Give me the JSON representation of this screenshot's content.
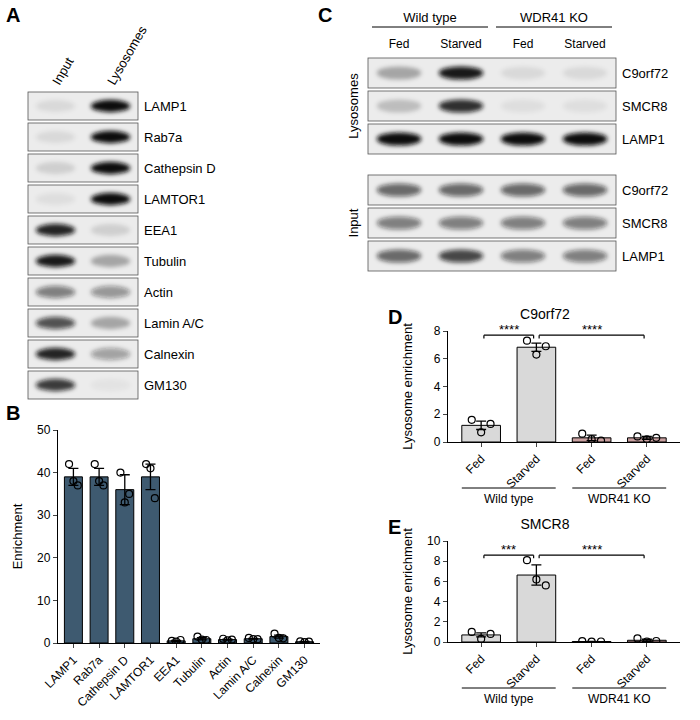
{
  "chart_data": [
    {
      "panel": "B",
      "type": "bar",
      "categories": [
        "LAMP1",
        "Rab7a",
        "Cathepsin D",
        "LAMTOR1",
        "EEA1",
        "Tubulin",
        "Actin",
        "Lamin A/C",
        "Calnexin",
        "GM130"
      ],
      "values": [
        39,
        39,
        36,
        39,
        0.5,
        1,
        0.8,
        1,
        1.5,
        0.3
      ],
      "errors": [
        2,
        2,
        3.5,
        3,
        0.1,
        0.25,
        0.1,
        0.1,
        0.35,
        0.06
      ],
      "points": [
        [
          42,
          38,
          37
        ],
        [
          42,
          38,
          37
        ],
        [
          40,
          33,
          35
        ],
        [
          42,
          41,
          34
        ],
        [
          0.5,
          0.3,
          0.7
        ],
        [
          1.5,
          0.8,
          0.7
        ],
        [
          1.0,
          0.6,
          0.8
        ],
        [
          1.2,
          0.9,
          0.9
        ],
        [
          2.2,
          1.2,
          1.1
        ],
        [
          0.4,
          0.2,
          0.3
        ]
      ],
      "color": "#3e5a70",
      "y_label": "Enrichment",
      "ylim": [
        0,
        50
      ],
      "yticks": [
        0,
        10,
        20,
        30,
        40,
        50
      ]
    },
    {
      "panel": "D",
      "type": "bar",
      "title": "C9orf72",
      "categories": [
        "Fed",
        "Starved",
        "Fed",
        "Starved"
      ],
      "groups": [
        {
          "label": "Wild type",
          "from": 0,
          "to": 1
        },
        {
          "label": "WDR41 KO",
          "from": 2,
          "to": 3
        }
      ],
      "values": [
        1.2,
        6.83,
        0.3,
        0.3
      ],
      "errors": [
        0.3,
        0.3,
        0.2,
        0.1
      ],
      "points": [
        [
          1.6,
          0.7,
          1.3
        ],
        [
          7.3,
          6.3,
          6.9
        ],
        [
          0.6,
          0.2,
          0.1
        ],
        [
          0.4,
          0.2,
          0.3
        ]
      ],
      "colors": [
        "#d9d9d9",
        "#d9d9d9",
        "#c9a0a0",
        "#c9a0a0"
      ],
      "y_label": "Lysosome enrichment",
      "ylim": [
        0,
        8
      ],
      "yticks": [
        0,
        2,
        4,
        6,
        8
      ],
      "significance": [
        {
          "from": 0,
          "to": 1,
          "text": "****"
        },
        {
          "from": 1,
          "to": 3,
          "text": "****"
        }
      ]
    },
    {
      "panel": "E",
      "type": "bar",
      "title": "SMCR8",
      "categories": [
        "Fed",
        "Starved",
        "Fed",
        "Starved"
      ],
      "groups": [
        {
          "label": "Wild type",
          "from": 0,
          "to": 1
        },
        {
          "label": "WDR41 KO",
          "from": 2,
          "to": 3
        }
      ],
      "values": [
        0.7,
        6.63,
        0.05,
        0.17
      ],
      "errors": [
        0.2,
        1.0,
        0.02,
        0.1
      ],
      "points": [
        [
          1.0,
          0.3,
          0.8
        ],
        [
          8.1,
          6.2,
          5.6
        ],
        [
          0.08,
          0.03,
          0.05
        ],
        [
          0.35,
          0.05,
          0.1
        ]
      ],
      "colors": [
        "#d9d9d9",
        "#d9d9d9",
        "#c9a0a0",
        "#c9a0a0"
      ],
      "y_label": "Lysosome enrichment",
      "ylim": [
        0,
        10
      ],
      "yticks": [
        0,
        2,
        4,
        6,
        8,
        10
      ],
      "significance": [
        {
          "from": 0,
          "to": 1,
          "text": "***"
        },
        {
          "from": 1,
          "to": 3,
          "text": "****"
        }
      ]
    }
  ],
  "blots": [
    {
      "panel": "A",
      "lanes": [
        "Input",
        "Lysosomes"
      ],
      "groups": [
        {
          "rows": [
            {
              "label": "LAMP1",
              "bands": [
                0.08,
                1
              ]
            },
            {
              "label": "Rab7a",
              "bands": [
                0.08,
                1
              ]
            },
            {
              "label": "Cathepsin D",
              "bands": [
                0.12,
                1
              ]
            },
            {
              "label": "LAMTOR1",
              "bands": [
                0.06,
                1
              ]
            },
            {
              "label": "EEA1",
              "bands": [
                0.9,
                0.12
              ]
            },
            {
              "label": "Tubulin",
              "bands": [
                0.95,
                0.3
              ]
            },
            {
              "label": "Actin",
              "bands": [
                0.5,
                0.4
              ]
            },
            {
              "label": "Lamin A/C",
              "bands": [
                0.7,
                0.3
              ]
            },
            {
              "label": "Calnexin",
              "bands": [
                0.9,
                0.35
              ]
            },
            {
              "label": "GM130",
              "bands": [
                0.8,
                0.04
              ]
            }
          ]
        }
      ]
    },
    {
      "panel": "C",
      "lanes": [
        "Fed",
        "Starved",
        "Fed",
        "Starved"
      ],
      "lane_groups": [
        {
          "label": "Wild type",
          "from": 0,
          "to": 1
        },
        {
          "label": "WDR41 KO",
          "from": 2,
          "to": 3
        }
      ],
      "groups": [
        {
          "label": "Lysosomes",
          "rows": [
            {
              "label": "C9orf72",
              "bands": [
                0.3,
                0.95,
                0.08,
                0.08
              ]
            },
            {
              "label": "SMCR8",
              "bands": [
                0.2,
                0.85,
                0.06,
                0.06
              ]
            },
            {
              "label": "LAMP1",
              "bands": [
                1,
                1,
                1,
                1
              ]
            }
          ]
        },
        {
          "label": "Input",
          "rows": [
            {
              "label": "C9orf72",
              "bands": [
                0.6,
                0.6,
                0.6,
                0.6
              ]
            },
            {
              "label": "SMCR8",
              "bands": [
                0.5,
                0.5,
                0.5,
                0.5
              ]
            },
            {
              "label": "LAMP1",
              "bands": [
                0.6,
                0.75,
                0.5,
                0.5
              ]
            }
          ]
        }
      ]
    }
  ]
}
